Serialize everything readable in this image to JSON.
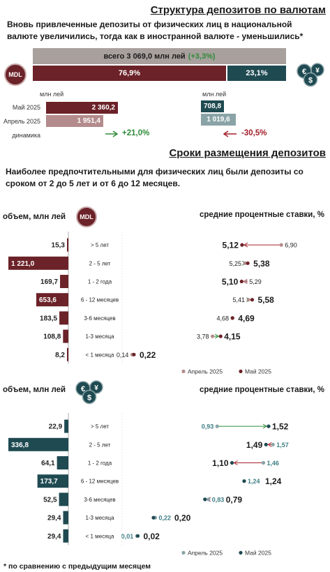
{
  "section1": {
    "title": "Структура депозитов по валютам",
    "lead": "Вновь привлеченные депозиты от физических лиц в национальной валюте увеличились, тогда как в иностранной валюте - уменьшились*",
    "total_text": "всего 3 069,0 млн лей",
    "total_change": "(+3,3%)",
    "mdl_badge": "MDL",
    "share_mdl": "76,9%",
    "share_fx": "23,1%",
    "share_mdl_value": 76.9,
    "share_fx_value": 23.1,
    "unit_mdl": "млн лей",
    "unit_fx": "млн лей",
    "row_may": "Май 2025",
    "row_apr": "Апрель 2025",
    "row_dyn": "динамика",
    "mdl_may": "2 360,2",
    "mdl_apr": "1 951,4",
    "fx_may": "708,8",
    "fx_apr": "1 019,6",
    "mdl_dyn": "+21,0%",
    "fx_dyn": "-30,5%",
    "icon_fx": "currency-coins-icon"
  },
  "section2": {
    "title": "Сроки размещения депозитов",
    "lead": "Наиболее предпочтительными для физических лиц были депозиты со сроком от 2 до 5 лет и от 6 до 12 месяцев."
  },
  "colors": {
    "mdl_dark": "#6b2228",
    "mdl_light": "#b48b8c",
    "fx_dark": "#1f4a52",
    "fx_light": "#8aa3a7",
    "green": "#2e8b3a",
    "red": "#a3202a",
    "gray_bar": "#a8a09d"
  },
  "chart_data": [
    {
      "type": "bar",
      "panel": "mdl_volume",
      "ylabel": "объем, млн лей",
      "badge": "MDL",
      "categories": [
        "> 5 лет",
        "2 - 5 лет",
        "1 - 2 года",
        "6 - 12 месяцев",
        "3-6 месяцев",
        "1-3 месяца",
        "< 1 месяца"
      ],
      "values": [
        15.3,
        1221.0,
        169.7,
        653.6,
        183.5,
        108.8,
        8.2
      ],
      "labels": [
        "15,3",
        "1 221,0",
        "169,7",
        "653,6",
        "183,5",
        "108,8",
        "8,2"
      ]
    },
    {
      "type": "scatter",
      "panel": "mdl_rates",
      "title": "средние процентные ставки, %",
      "categories": [
        "> 5 лет",
        "2 - 5 лет",
        "1 - 2 года",
        "6 - 12 месяцев",
        "3-6 месяцев",
        "1-3 месяца",
        "< 1 месяца"
      ],
      "xlim": [
        0,
        8
      ],
      "series": [
        {
          "name": "Апрель 2025",
          "values": [
            6.9,
            5.25,
            5.29,
            5.41,
            4.68,
            3.78,
            0.14
          ],
          "labels": [
            "6,90",
            "5,25",
            "5,29",
            "5,41",
            "4,68",
            "3,78",
            "0,14"
          ]
        },
        {
          "name": "Май 2025",
          "values": [
            5.12,
            5.38,
            5.1,
            5.58,
            4.69,
            4.15,
            0.22
          ],
          "labels": [
            "5,12",
            "5,38",
            "5,10",
            "5,58",
            "4,69",
            "4,15",
            "0,22"
          ]
        }
      ]
    },
    {
      "type": "bar",
      "panel": "fx_volume",
      "ylabel": "объем, млн лей",
      "categories": [
        "> 5 лет",
        "2 - 5 лет",
        "1 - 2 года",
        "6 - 12 месяцев",
        "3-6 месяцев",
        "1-3 месяца",
        "< 1 месяца"
      ],
      "values": [
        22.9,
        336.8,
        64.1,
        173.7,
        52.5,
        29.4,
        29.4
      ],
      "labels": [
        "22,9",
        "336,8",
        "64,1",
        "173,7",
        "52,5",
        "29,4",
        "29,4"
      ]
    },
    {
      "type": "scatter",
      "panel": "fx_rates",
      "title": "средние процентные ставки, %",
      "categories": [
        "> 5 лет",
        "2 - 5 лет",
        "1 - 2 года",
        "6 - 12 месяцев",
        "3-6 месяцев",
        "1-3 месяца",
        "< 1 месяца"
      ],
      "xlim": [
        0,
        2
      ],
      "series": [
        {
          "name": "Апрель 2025",
          "values": [
            0.93,
            1.57,
            1.46,
            1.24,
            0.83,
            0.22,
            0.01
          ],
          "labels": [
            "0,93",
            "1,57",
            "1,46",
            "1,24",
            "0,83",
            "0,22",
            "0,01"
          ]
        },
        {
          "name": "Май 2025",
          "values": [
            1.52,
            1.49,
            1.1,
            1.24,
            0.79,
            0.2,
            0.02
          ],
          "labels": [
            "1,52",
            "1,49",
            "1,10",
            "1,24",
            "0,79",
            "0,20",
            "0,02"
          ]
        }
      ]
    }
  ],
  "footnote": "* по сравнению с предыдущим месяцем"
}
